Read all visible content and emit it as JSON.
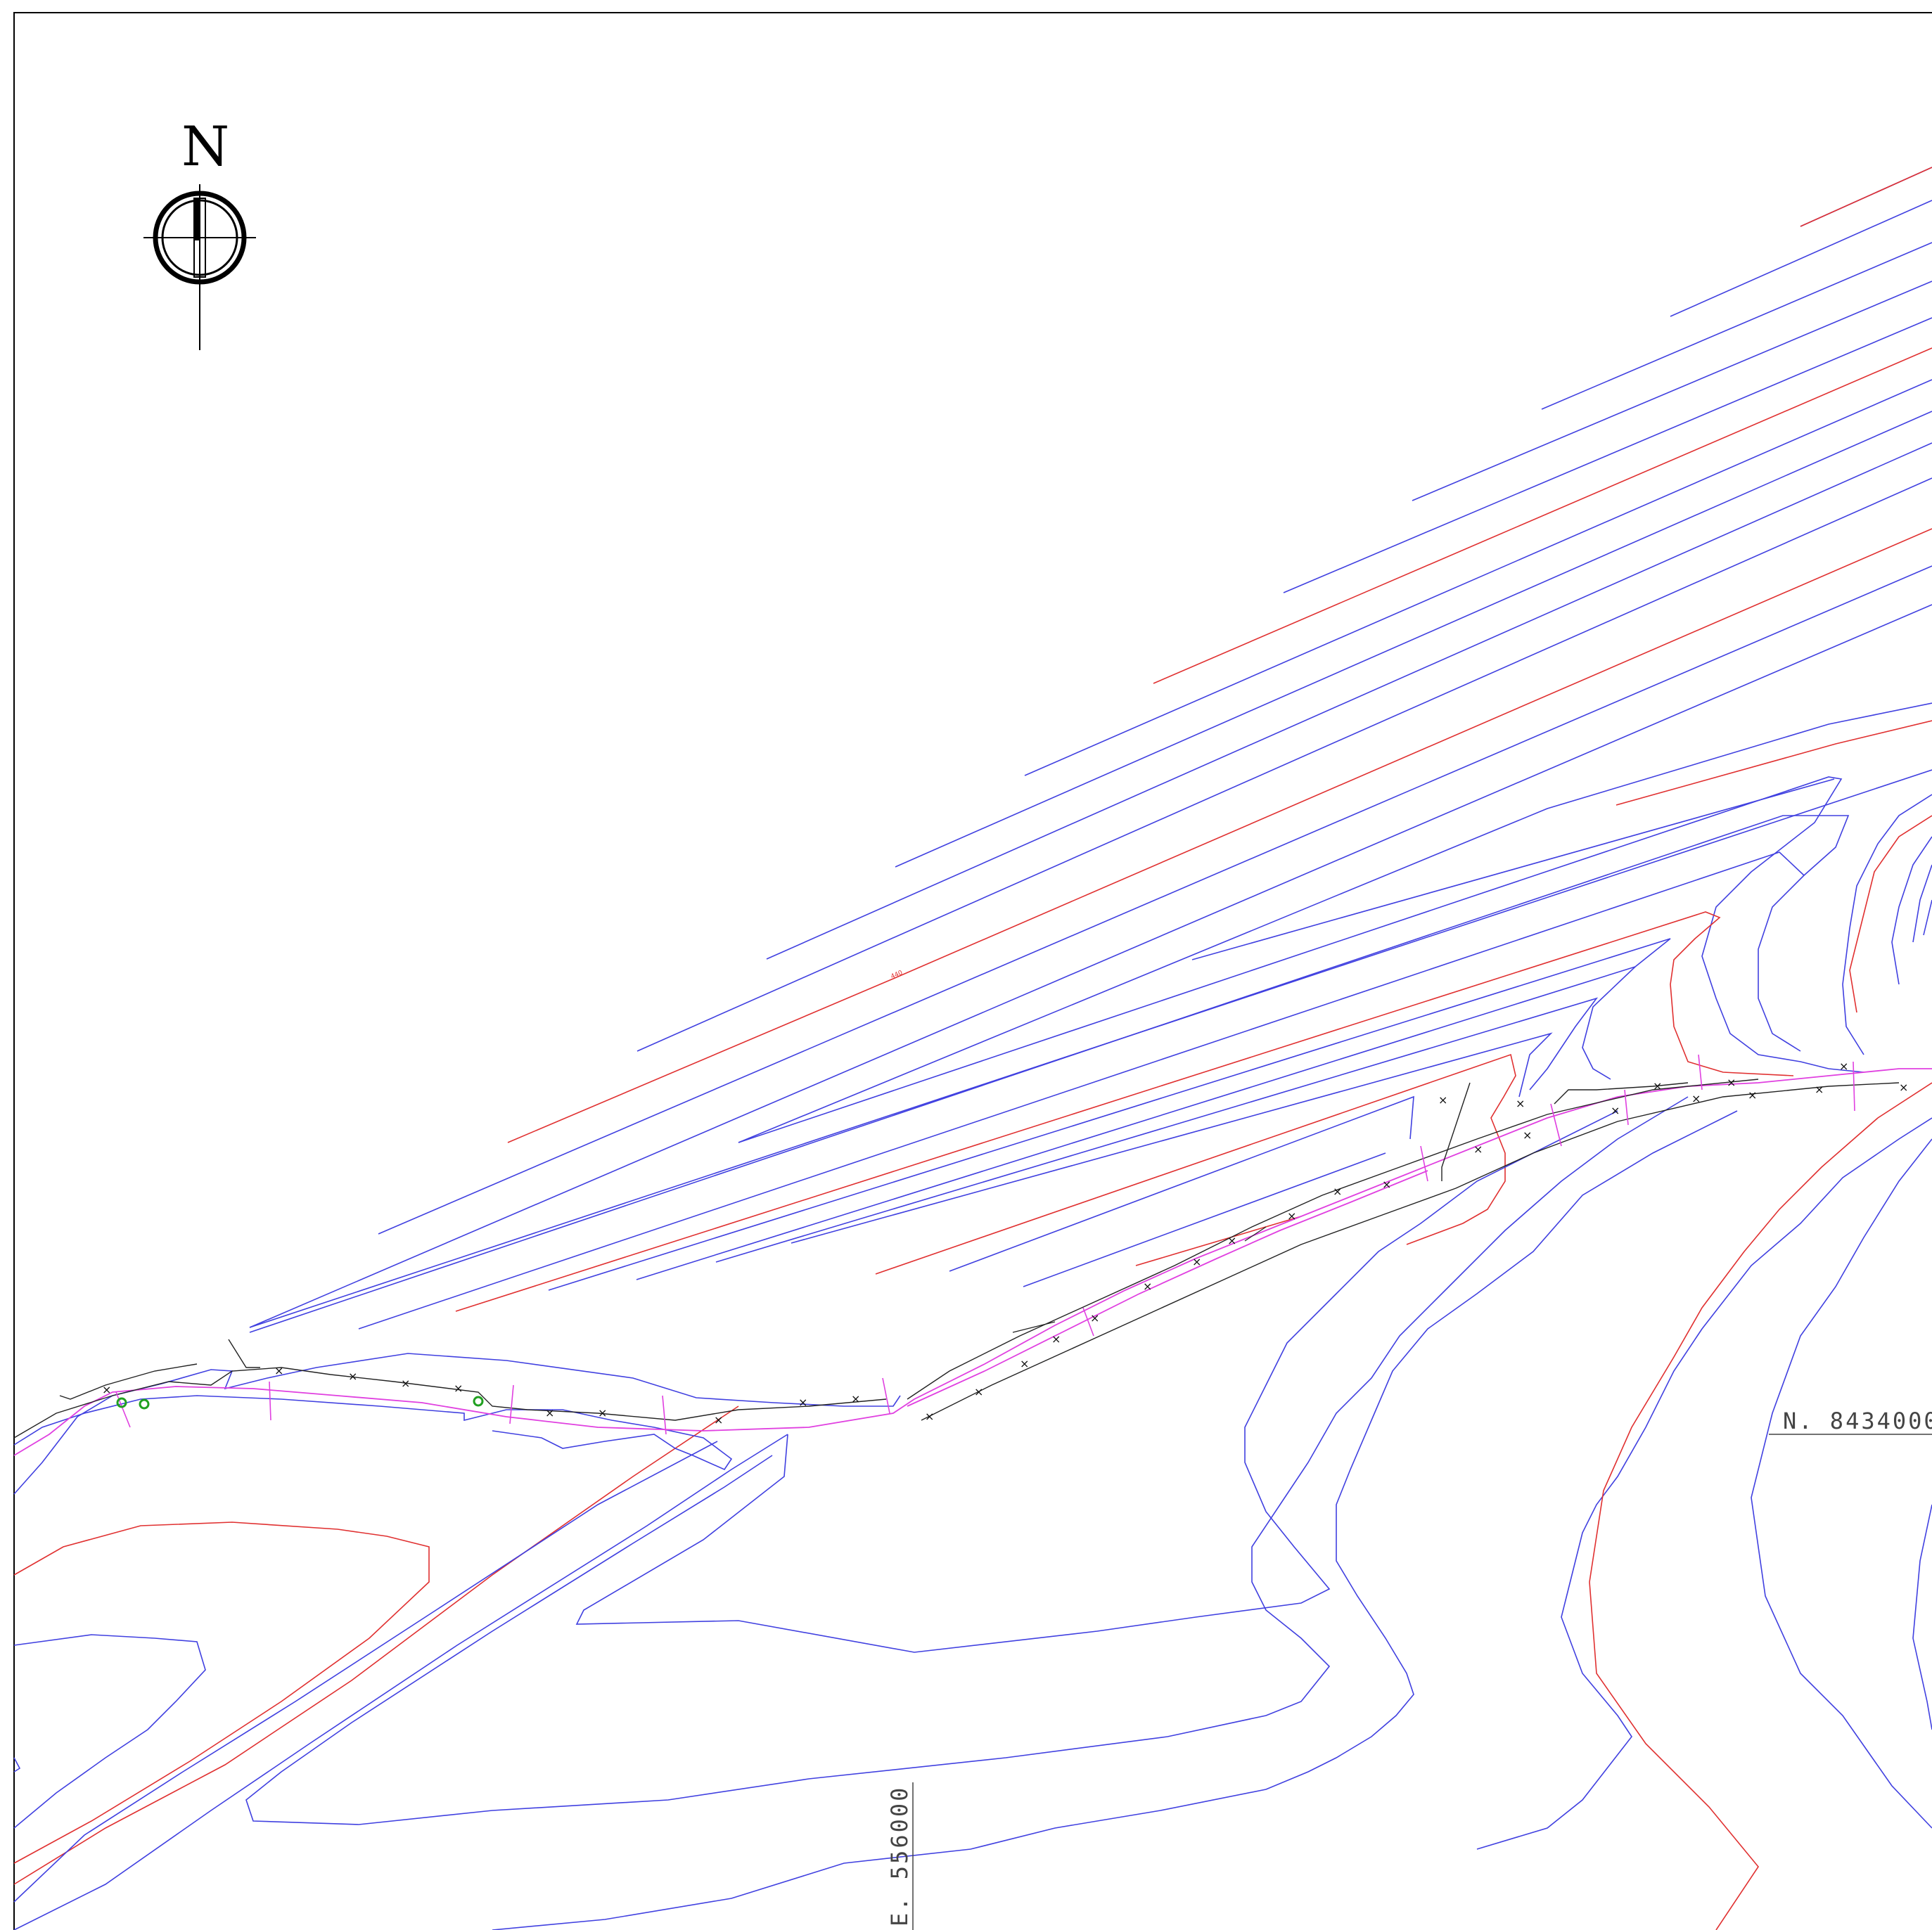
{
  "north_arrow": {
    "label": "N",
    "icon": "north-arrow-icon"
  },
  "grid_labels": {
    "northing": "N.  8434000",
    "easting": "E.  556000"
  },
  "colors": {
    "contour_minor": "#4040e0",
    "contour_major": "#e03030",
    "road": "#e040e0",
    "border": "#000000",
    "tree": "#20a020"
  },
  "contour_label": "440"
}
